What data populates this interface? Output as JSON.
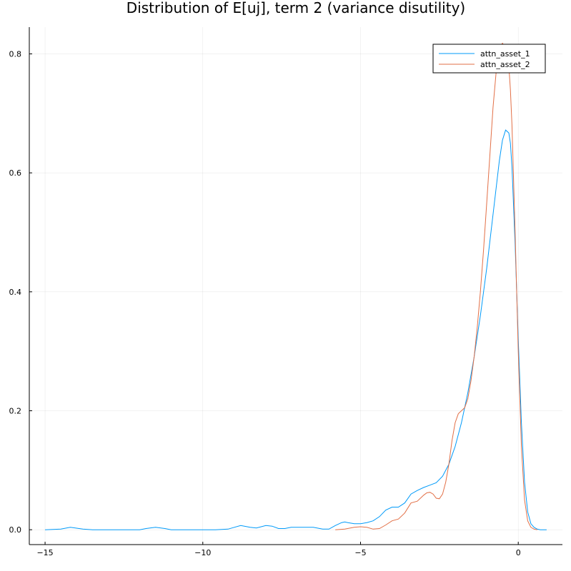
{
  "chart_data": {
    "type": "line",
    "title": "Distribution of E[uj], term 2 (variance disutility)",
    "xlabel": "",
    "ylabel": "",
    "xlim": [
      -15.5,
      1.4
    ],
    "ylim": [
      -0.025,
      0.845
    ],
    "xticks": [
      -15,
      -10,
      -5,
      0
    ],
    "yticks": [
      0.0,
      0.2,
      0.4,
      0.6,
      0.8
    ],
    "xtick_labels": [
      "−15",
      "−10",
      "−5",
      "0"
    ],
    "ytick_labels": [
      "0.0",
      "0.2",
      "0.4",
      "0.6",
      "0.8"
    ],
    "grid": true,
    "legend_position": "top-right",
    "series": [
      {
        "name": "attn_asset_1",
        "color": "#009af9",
        "x": [
          -15.0,
          -14.5,
          -14.2,
          -13.8,
          -13.5,
          -12.5,
          -12.0,
          -11.8,
          -11.5,
          -11.2,
          -11.0,
          -10.0,
          -9.6,
          -9.2,
          -8.8,
          -8.5,
          -8.3,
          -8.0,
          -7.8,
          -7.6,
          -7.4,
          -7.2,
          -7.0,
          -6.8,
          -6.5,
          -6.2,
          -6.0,
          -5.8,
          -5.6,
          -5.5,
          -5.4,
          -5.2,
          -5.0,
          -4.8,
          -4.6,
          -4.4,
          -4.2,
          -4.0,
          -3.8,
          -3.6,
          -3.4,
          -3.2,
          -3.0,
          -2.8,
          -2.6,
          -2.4,
          -2.2,
          -2.0,
          -1.8,
          -1.6,
          -1.4,
          -1.2,
          -1.0,
          -0.8,
          -0.6,
          -0.5,
          -0.4,
          -0.3,
          -0.25,
          -0.2,
          -0.1,
          0.0,
          0.1,
          0.2,
          0.3,
          0.4,
          0.5,
          0.6,
          0.7,
          0.8,
          0.9
        ],
        "y": [
          0.0,
          0.001,
          0.004,
          0.001,
          0.0,
          0.0,
          0.0,
          0.002,
          0.004,
          0.002,
          0.0,
          0.0,
          0.0,
          0.001,
          0.007,
          0.004,
          0.003,
          0.007,
          0.006,
          0.002,
          0.002,
          0.004,
          0.004,
          0.004,
          0.004,
          0.001,
          0.001,
          0.007,
          0.012,
          0.013,
          0.012,
          0.01,
          0.01,
          0.012,
          0.015,
          0.022,
          0.033,
          0.038,
          0.038,
          0.045,
          0.06,
          0.066,
          0.071,
          0.075,
          0.079,
          0.09,
          0.11,
          0.14,
          0.18,
          0.23,
          0.29,
          0.36,
          0.44,
          0.53,
          0.62,
          0.655,
          0.672,
          0.667,
          0.65,
          0.61,
          0.48,
          0.32,
          0.18,
          0.08,
          0.03,
          0.01,
          0.004,
          0.001,
          0.0,
          0.0,
          0.0
        ]
      },
      {
        "name": "attn_asset_2",
        "color": "#e26f46",
        "x": [
          -5.8,
          -5.5,
          -5.2,
          -5.0,
          -4.8,
          -4.6,
          -4.4,
          -4.2,
          -4.0,
          -3.8,
          -3.6,
          -3.4,
          -3.2,
          -3.0,
          -2.9,
          -2.8,
          -2.7,
          -2.6,
          -2.5,
          -2.4,
          -2.3,
          -2.2,
          -2.1,
          -2.0,
          -1.9,
          -1.8,
          -1.7,
          -1.6,
          -1.5,
          -1.4,
          -1.3,
          -1.2,
          -1.1,
          -1.0,
          -0.9,
          -0.8,
          -0.7,
          -0.6,
          -0.5,
          -0.4,
          -0.3,
          -0.25,
          -0.2,
          -0.1,
          0.0,
          0.1,
          0.2,
          0.3,
          0.4,
          0.5,
          0.6
        ],
        "y": [
          0.0,
          0.001,
          0.004,
          0.005,
          0.004,
          0.001,
          0.002,
          0.008,
          0.015,
          0.018,
          0.028,
          0.045,
          0.048,
          0.058,
          0.062,
          0.063,
          0.06,
          0.053,
          0.052,
          0.06,
          0.08,
          0.11,
          0.15,
          0.18,
          0.195,
          0.2,
          0.205,
          0.22,
          0.25,
          0.29,
          0.34,
          0.4,
          0.47,
          0.55,
          0.63,
          0.71,
          0.77,
          0.81,
          0.818,
          0.81,
          0.78,
          0.74,
          0.68,
          0.5,
          0.3,
          0.14,
          0.05,
          0.015,
          0.004,
          0.001,
          0.0
        ]
      }
    ]
  }
}
